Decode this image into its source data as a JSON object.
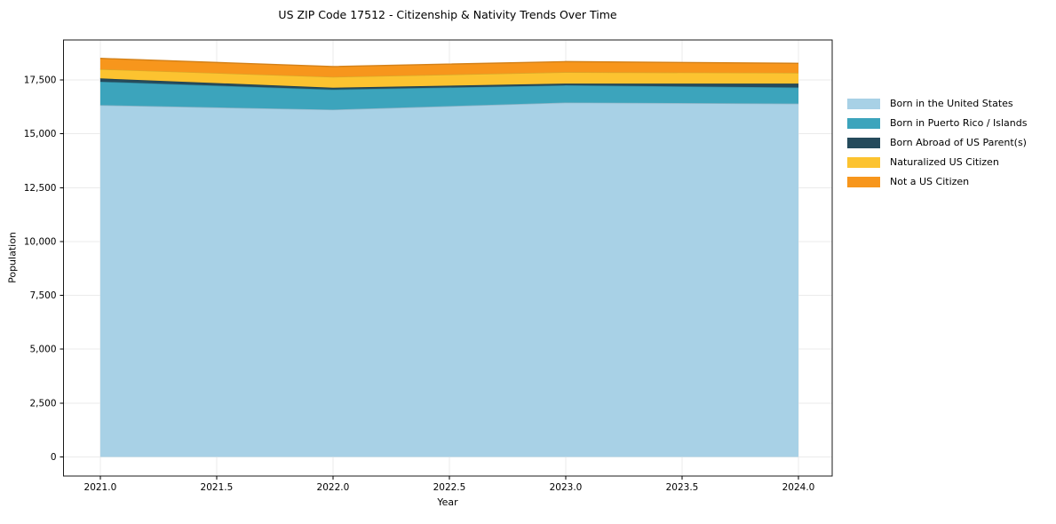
{
  "figure": {
    "background": "#ffffff",
    "spine_color": "#1a1a1a",
    "grid_color": "#ebebeb",
    "tick_color": "#000000",
    "text_color": "#000000"
  },
  "chart_data": {
    "type": "area",
    "stacked": true,
    "title": "US ZIP Code 17512 - Citizenship & Nativity Trends Over Time",
    "xlabel": "Year",
    "ylabel": "Population",
    "x": [
      2021,
      2022,
      2023,
      2024
    ],
    "series": [
      {
        "name": "Born in the United States",
        "color": "#a8d1e6",
        "values": [
          16330,
          16120,
          16450,
          16400
        ]
      },
      {
        "name": "Born in Puerto Rico / Islands",
        "color": "#3ca4bc",
        "values": [
          1090,
          930,
          800,
          750
        ]
      },
      {
        "name": "Born Abroad of US Parent(s)",
        "color": "#254b5c",
        "values": [
          150,
          90,
          80,
          180
        ]
      },
      {
        "name": "Naturalized US Citizen",
        "color": "#fcc330",
        "values": [
          430,
          500,
          530,
          500
        ]
      },
      {
        "name": "Not a US Citizen",
        "color": "#f7961c",
        "values": [
          500,
          480,
          490,
          440
        ]
      }
    ],
    "xticks": [
      2021.0,
      2021.5,
      2022.0,
      2022.5,
      2023.0,
      2023.5,
      2024.0
    ],
    "yticks": [
      0,
      2500,
      5000,
      7500,
      10000,
      12500,
      15000,
      17500
    ],
    "xlim": [
      2020.842,
      2024.145
    ],
    "ylim": [
      -886,
      19355
    ],
    "grid": true,
    "legend_position": "right"
  }
}
